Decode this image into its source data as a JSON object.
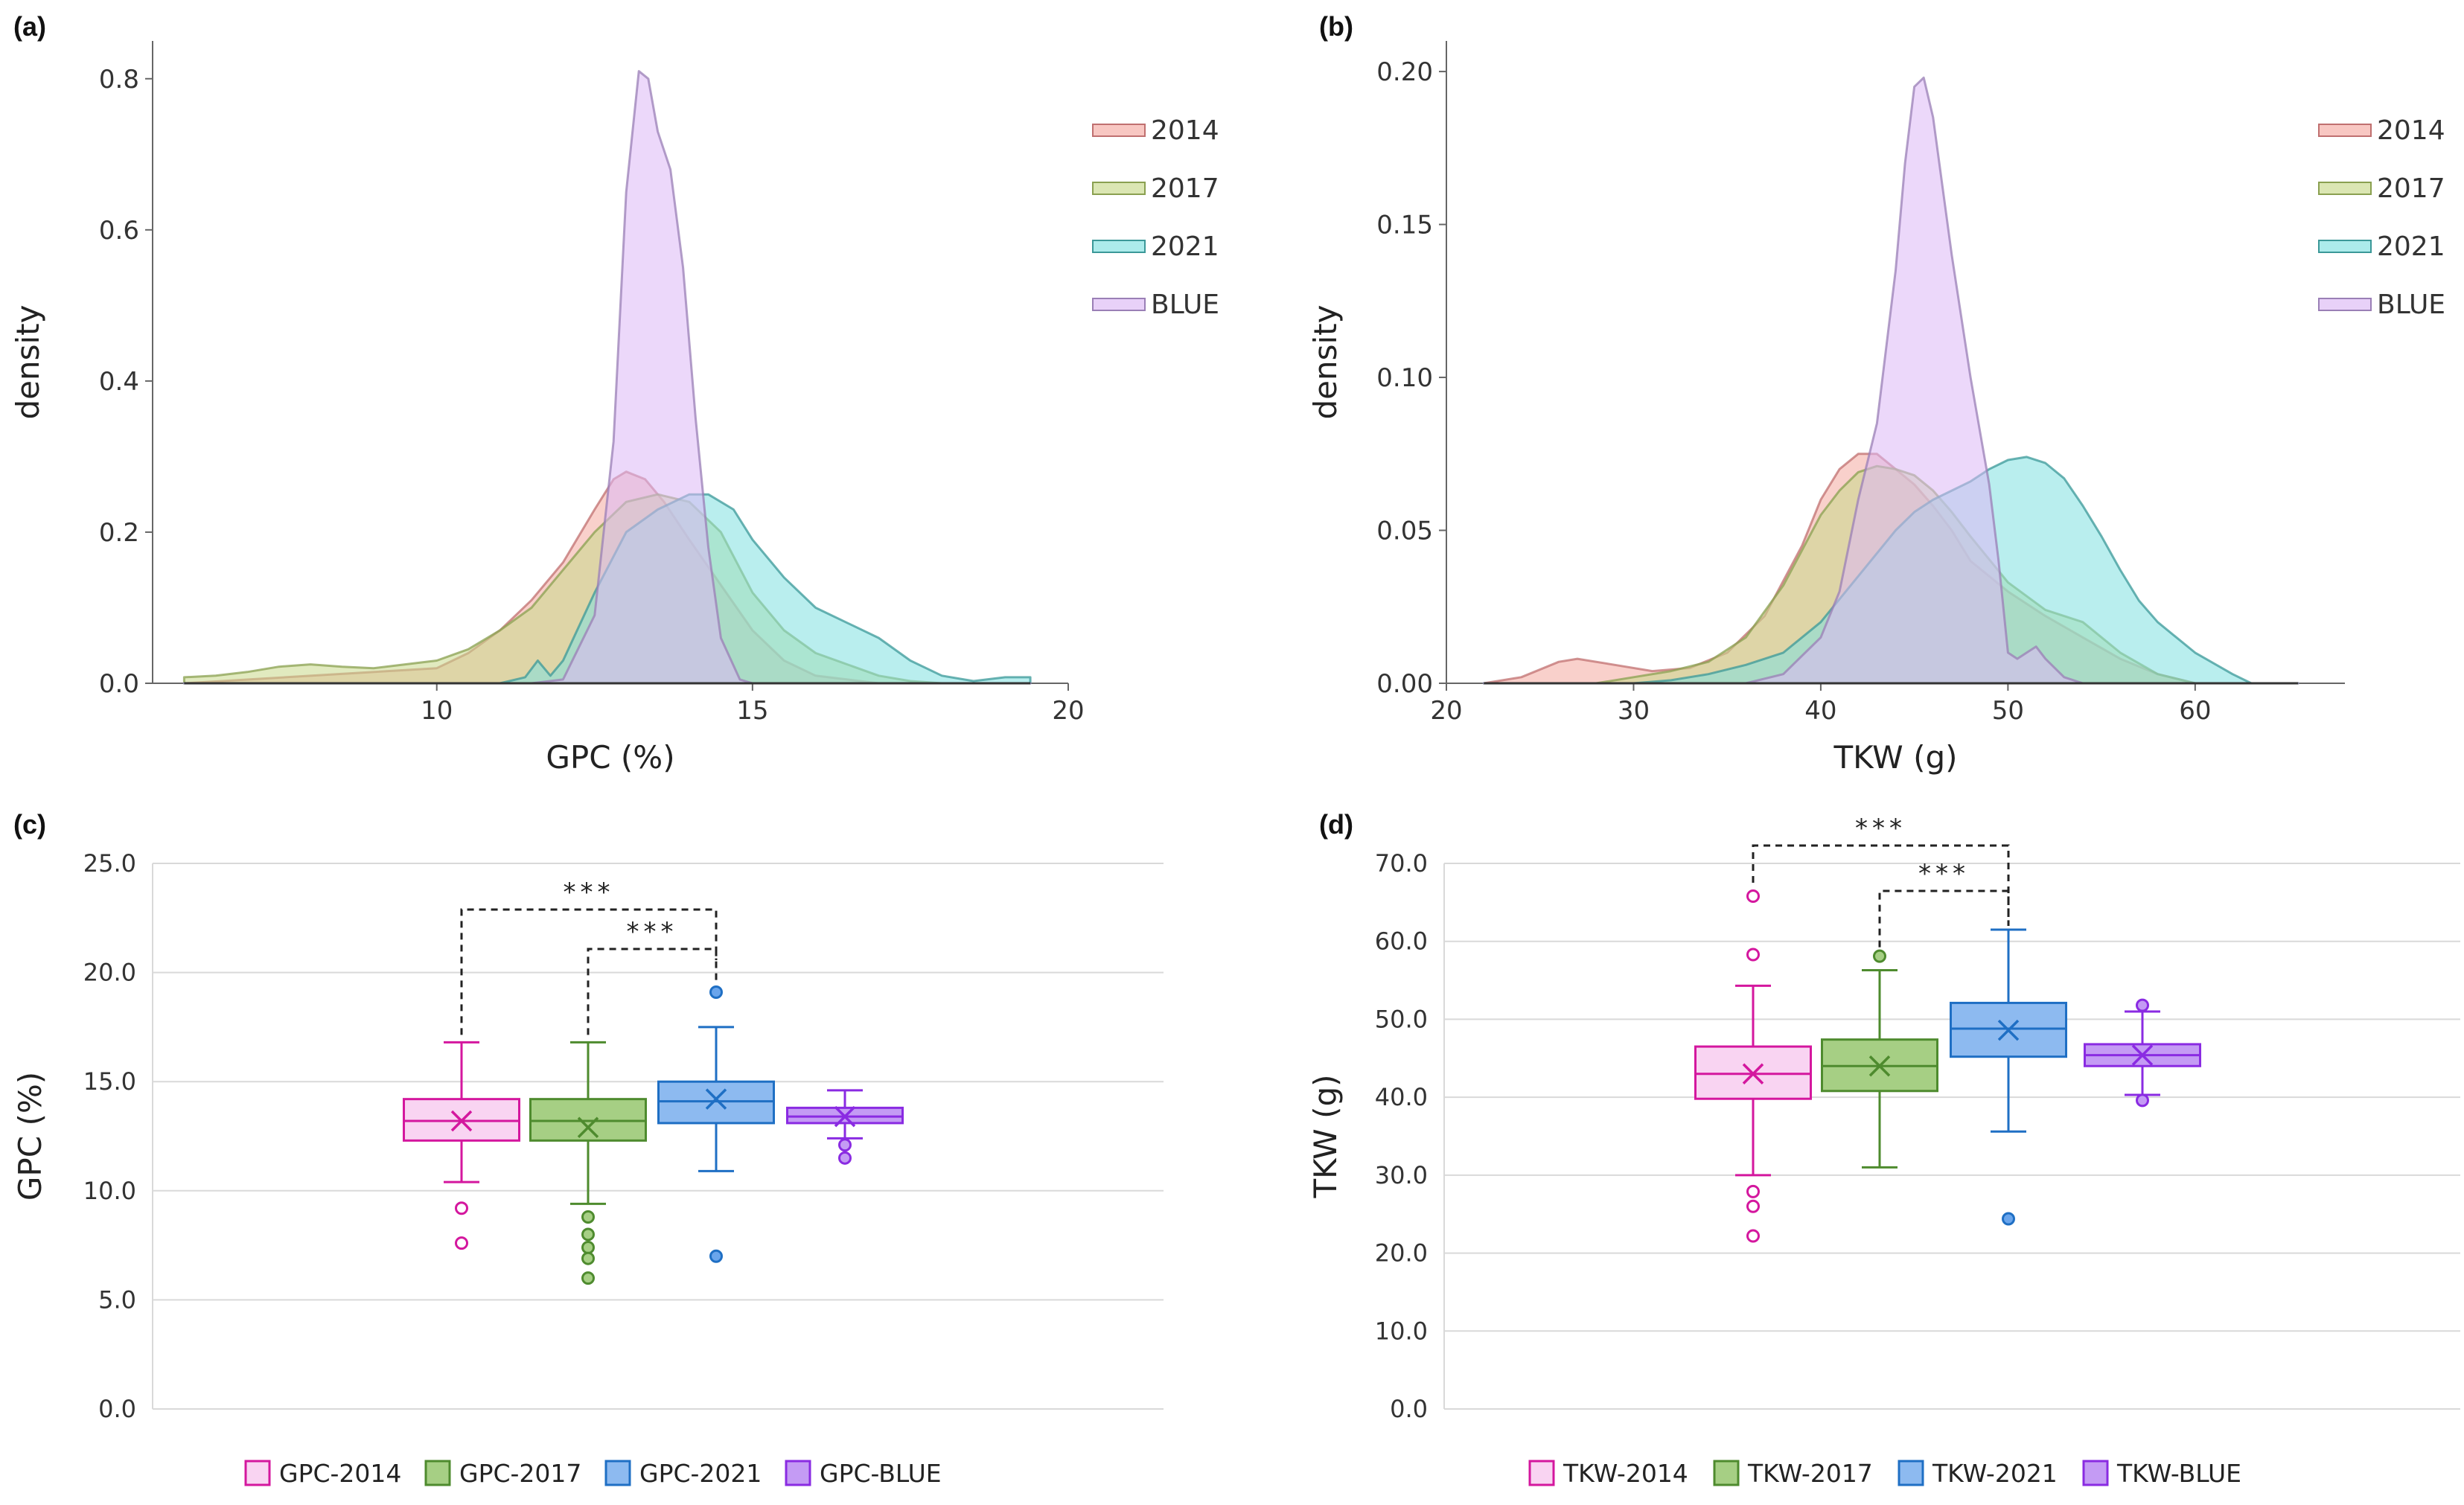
{
  "chart_data": [
    {
      "panel": "(a)",
      "type": "area",
      "title": "",
      "xlabel": "GPC (%)",
      "ylabel": "density",
      "xlim": [
        5.5,
        20
      ],
      "ylim": [
        0,
        0.85
      ],
      "xticks": [
        10,
        15,
        20
      ],
      "yticks": [
        "0.0",
        "0.2",
        "0.4",
        "0.6",
        "0.8"
      ],
      "legend": [
        "2014",
        "2017",
        "2021",
        "BLUE"
      ],
      "legend_position": "top-right",
      "colors": [
        "#f4a9a1",
        "#c8d98a",
        "#7fe0e0",
        "#dcb8f5"
      ],
      "series": [
        {
          "name": "2014",
          "x": [
            6.0,
            10.0,
            10.5,
            11.0,
            11.5,
            12.0,
            12.5,
            12.8,
            13.0,
            13.3,
            13.6,
            14.0,
            14.5,
            15.0,
            15.5,
            16.0,
            16.5,
            17.0,
            17.5,
            18.0
          ],
          "y": [
            0.0,
            0.02,
            0.04,
            0.07,
            0.11,
            0.16,
            0.23,
            0.27,
            0.28,
            0.27,
            0.24,
            0.19,
            0.13,
            0.07,
            0.03,
            0.01,
            0.005,
            0.0,
            0.0,
            0.0
          ]
        },
        {
          "name": "2017",
          "x": [
            6.0,
            6.5,
            7.0,
            7.5,
            8.0,
            8.5,
            9.0,
            9.5,
            10.0,
            10.5,
            11.0,
            11.5,
            12.0,
            12.5,
            13.0,
            13.5,
            14.0,
            14.5,
            15.0,
            15.5,
            16.0,
            16.5,
            17.0,
            17.5,
            18.0
          ],
          "y": [
            0.008,
            0.01,
            0.015,
            0.022,
            0.025,
            0.022,
            0.02,
            0.025,
            0.03,
            0.045,
            0.07,
            0.1,
            0.15,
            0.2,
            0.24,
            0.25,
            0.24,
            0.2,
            0.12,
            0.07,
            0.04,
            0.025,
            0.01,
            0.003,
            0.0
          ]
        },
        {
          "name": "2021",
          "x": [
            6.0,
            10.0,
            11.0,
            11.4,
            11.6,
            11.8,
            12.0,
            12.5,
            13.0,
            13.5,
            14.0,
            14.3,
            14.7,
            15.0,
            15.5,
            16.0,
            16.5,
            17.0,
            17.5,
            18.0,
            18.5,
            19.0,
            19.4
          ],
          "y": [
            0.0,
            0.0,
            0.0,
            0.008,
            0.03,
            0.01,
            0.03,
            0.12,
            0.2,
            0.23,
            0.25,
            0.25,
            0.23,
            0.19,
            0.14,
            0.1,
            0.08,
            0.06,
            0.03,
            0.01,
            0.003,
            0.008,
            0.008
          ]
        },
        {
          "name": "BLUE",
          "x": [
            6.0,
            11.5,
            12.0,
            12.5,
            12.8,
            13.0,
            13.2,
            13.35,
            13.5,
            13.7,
            13.9,
            14.1,
            14.3,
            14.5,
            14.8,
            15.0,
            19.4
          ],
          "y": [
            0.0,
            0.0,
            0.005,
            0.09,
            0.32,
            0.65,
            0.81,
            0.8,
            0.73,
            0.68,
            0.55,
            0.35,
            0.18,
            0.06,
            0.005,
            0.0,
            0.0
          ]
        }
      ]
    },
    {
      "panel": "(b)",
      "type": "area",
      "title": "",
      "xlabel": "TKW (g)",
      "ylabel": "density",
      "xlim": [
        20,
        68
      ],
      "ylim": [
        0,
        0.21
      ],
      "xticks": [
        20,
        30,
        40,
        50,
        60
      ],
      "yticks": [
        "0.00",
        "0.05",
        "0.10",
        "0.15",
        "0.20"
      ],
      "legend": [
        "2014",
        "2017",
        "2021",
        "BLUE"
      ],
      "legend_position": "top-right",
      "colors": [
        "#f4a9a1",
        "#c8d98a",
        "#7fe0e0",
        "#dcb8f5"
      ],
      "series": [
        {
          "name": "2014",
          "x": [
            22,
            24,
            26,
            27,
            29,
            31,
            33,
            35,
            37,
            39,
            40,
            41,
            42,
            43,
            44,
            45,
            46,
            47,
            48,
            50,
            52,
            54,
            56,
            58,
            60,
            62,
            64,
            65.5
          ],
          "y": [
            0.0,
            0.002,
            0.007,
            0.008,
            0.006,
            0.004,
            0.005,
            0.01,
            0.022,
            0.045,
            0.06,
            0.07,
            0.075,
            0.075,
            0.07,
            0.065,
            0.058,
            0.05,
            0.04,
            0.03,
            0.022,
            0.015,
            0.008,
            0.003,
            0.0,
            0.0,
            0.0,
            0.0
          ]
        },
        {
          "name": "2017",
          "x": [
            22,
            28,
            30,
            32,
            34,
            36,
            38,
            40,
            41,
            42,
            43,
            44,
            45,
            46,
            47,
            48,
            50,
            52,
            54,
            56,
            58,
            60,
            65.5
          ],
          "y": [
            0.0,
            0.0,
            0.002,
            0.004,
            0.007,
            0.015,
            0.032,
            0.055,
            0.063,
            0.069,
            0.071,
            0.07,
            0.068,
            0.063,
            0.056,
            0.048,
            0.033,
            0.024,
            0.02,
            0.01,
            0.003,
            0.0,
            0.0
          ]
        },
        {
          "name": "2021",
          "x": [
            22,
            30,
            32,
            34,
            36,
            38,
            40,
            42,
            44,
            45,
            46,
            47,
            48,
            49,
            50,
            51,
            52,
            53,
            54,
            55,
            56,
            57,
            58,
            60,
            62,
            63,
            65.5
          ],
          "y": [
            0.0,
            0.0,
            0.001,
            0.003,
            0.006,
            0.01,
            0.02,
            0.035,
            0.05,
            0.056,
            0.06,
            0.063,
            0.066,
            0.07,
            0.073,
            0.074,
            0.072,
            0.067,
            0.058,
            0.048,
            0.037,
            0.027,
            0.02,
            0.01,
            0.003,
            0.0,
            0.0
          ]
        },
        {
          "name": "BLUE",
          "x": [
            22,
            36,
            38,
            40,
            41,
            42,
            43,
            44,
            44.5,
            45,
            45.5,
            46,
            47,
            48,
            49,
            49.5,
            50,
            50.5,
            51,
            51.5,
            52,
            53,
            54,
            65.5
          ],
          "y": [
            0.0,
            0.0,
            0.003,
            0.015,
            0.03,
            0.06,
            0.085,
            0.135,
            0.17,
            0.195,
            0.198,
            0.185,
            0.14,
            0.1,
            0.065,
            0.04,
            0.01,
            0.008,
            0.01,
            0.012,
            0.008,
            0.002,
            0.0,
            0.0
          ]
        }
      ]
    },
    {
      "panel": "(c)",
      "type": "box",
      "title": "",
      "xlabel": "",
      "ylabel": "GPC (%)",
      "ylim": [
        0,
        25
      ],
      "yticks": [
        "0.0",
        "5.0",
        "10.0",
        "15.0",
        "20.0",
        "25.0"
      ],
      "legend": [
        "GPC-2014",
        "GPC-2017",
        "GPC-2021",
        "GPC-BLUE"
      ],
      "legend_position": "bottom",
      "boxes": [
        {
          "name": "GPC-2014",
          "fill": "#f9d4f2",
          "stroke": "#d4179e",
          "q1": 12.3,
          "median": 13.2,
          "q3": 14.2,
          "whisker_low": 10.4,
          "whisker_high": 16.8,
          "mean": 13.2,
          "outliers": [
            9.2,
            7.6
          ],
          "outlier_fill": "#ffffff"
        },
        {
          "name": "GPC-2017",
          "fill": "#a6cf84",
          "stroke": "#4e8b2e",
          "q1": 12.3,
          "median": 13.2,
          "q3": 14.2,
          "whisker_low": 9.4,
          "whisker_high": 16.8,
          "mean": 12.9,
          "outliers": [
            8.8,
            8.0,
            7.4,
            6.9,
            6.0
          ],
          "outlier_fill": "#a6cf84"
        },
        {
          "name": "GPC-2021",
          "fill": "#8dbaf0",
          "stroke": "#1f6fc4",
          "q1": 13.1,
          "median": 14.1,
          "q3": 15.0,
          "whisker_low": 10.9,
          "whisker_high": 17.5,
          "mean": 14.2,
          "outliers": [
            19.1,
            7.0
          ],
          "outlier_fill": "#6aa5ec"
        },
        {
          "name": "GPC-BLUE",
          "fill": "#c49bf4",
          "stroke": "#8a2be2",
          "q1": 13.1,
          "median": 13.4,
          "q3": 13.8,
          "whisker_low": 12.4,
          "whisker_high": 14.6,
          "mean": 13.4,
          "outliers": [
            12.1,
            11.5
          ],
          "outlier_fill": "#c49bf4"
        }
      ],
      "significance": [
        {
          "from": "GPC-2014",
          "to": "GPC-2021",
          "label": "***"
        },
        {
          "from": "GPC-2017",
          "to": "GPC-2021",
          "label": "***"
        }
      ]
    },
    {
      "panel": "(d)",
      "type": "box",
      "title": "",
      "xlabel": "",
      "ylabel": "TKW (g)",
      "ylim": [
        0,
        70
      ],
      "yticks": [
        "0.0",
        "10.0",
        "20.0",
        "30.0",
        "40.0",
        "50.0",
        "60.0",
        "70.0"
      ],
      "legend": [
        "TKW-2014",
        "TKW-2017",
        "TKW-2021",
        "TKW-BLUE"
      ],
      "legend_position": "bottom",
      "boxes": [
        {
          "name": "TKW-2014",
          "fill": "#f9d4f2",
          "stroke": "#d4179e",
          "q1": 39.8,
          "median": 43.0,
          "q3": 46.5,
          "whisker_low": 30.0,
          "whisker_high": 54.3,
          "mean": 43.0,
          "outliers": [
            65.8,
            58.3,
            27.9,
            26.0,
            22.2
          ],
          "outlier_fill": "#ffffff"
        },
        {
          "name": "TKW-2017",
          "fill": "#a6cf84",
          "stroke": "#4e8b2e",
          "q1": 40.8,
          "median": 44.0,
          "q3": 47.4,
          "whisker_low": 31.0,
          "whisker_high": 56.3,
          "mean": 44.0,
          "outliers": [
            58.1
          ],
          "outlier_fill": "#a6cf84"
        },
        {
          "name": "TKW-2021",
          "fill": "#8dbaf0",
          "stroke": "#1f6fc4",
          "q1": 45.2,
          "median": 48.8,
          "q3": 52.1,
          "whisker_low": 35.6,
          "whisker_high": 61.5,
          "mean": 48.6,
          "outliers": [
            24.4
          ],
          "outlier_fill": "#6aa5ec"
        },
        {
          "name": "TKW-BLUE",
          "fill": "#c49bf4",
          "stroke": "#8a2be2",
          "q1": 44.0,
          "median": 45.4,
          "q3": 46.8,
          "whisker_low": 40.3,
          "whisker_high": 51.0,
          "mean": 45.4,
          "outliers": [
            51.8,
            39.6
          ],
          "outlier_fill": "#c49bf4"
        }
      ],
      "significance": [
        {
          "from": "TKW-2014",
          "to": "TKW-2021",
          "label": "***"
        },
        {
          "from": "TKW-2017",
          "to": "TKW-2021",
          "label": "***"
        }
      ]
    }
  ]
}
